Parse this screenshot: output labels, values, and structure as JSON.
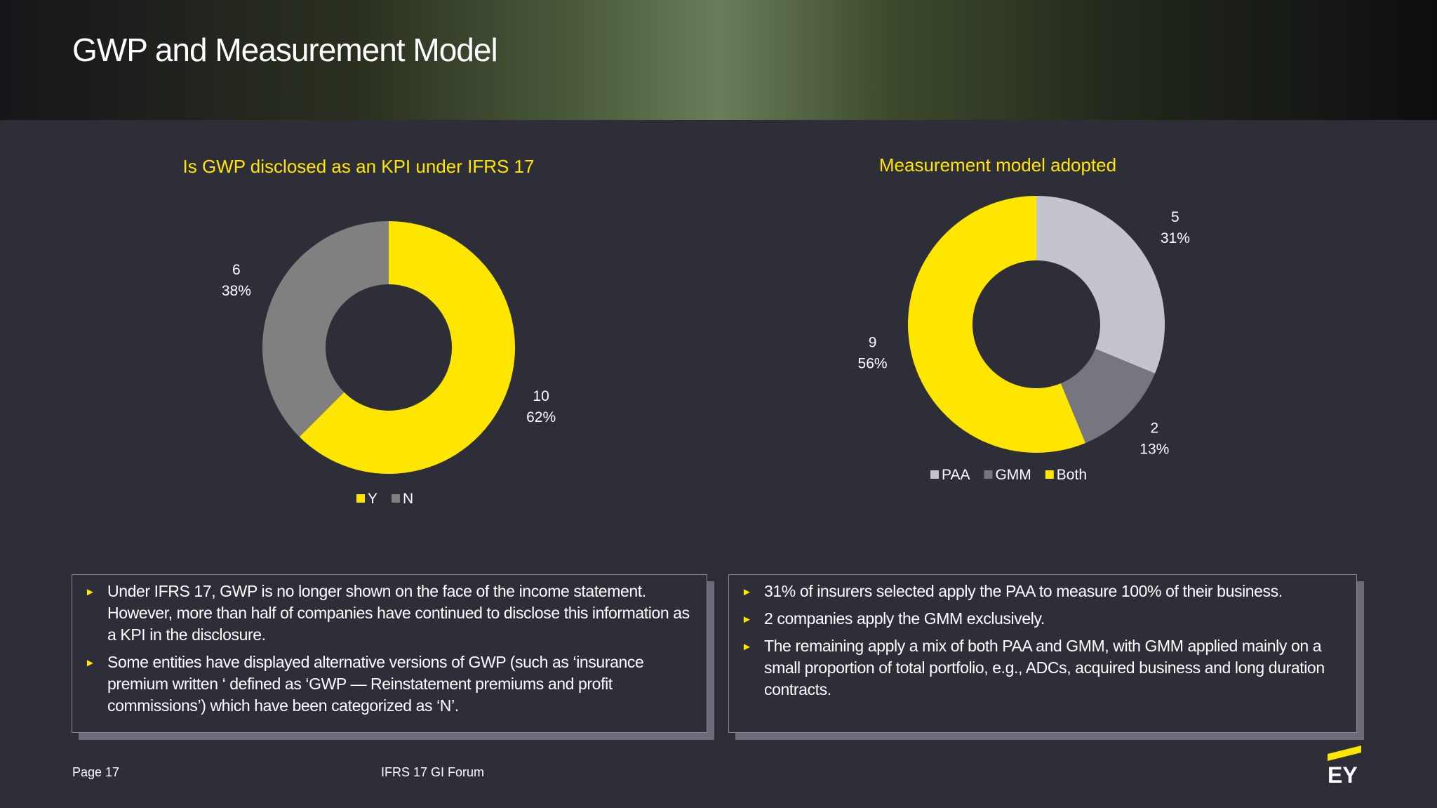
{
  "header": {
    "title": "GWP and Measurement Model"
  },
  "chart_data": [
    {
      "type": "donut",
      "title": "Is GWP disclosed as an KPI under IFRS 17",
      "categories": [
        "Y",
        "N"
      ],
      "values": [
        10,
        6
      ],
      "percent_labels": [
        "62%",
        "38%"
      ],
      "colors": [
        "#ffe600",
        "#808080"
      ]
    },
    {
      "type": "donut",
      "title": "Measurement model adopted",
      "categories": [
        "PAA",
        "GMM",
        "Both"
      ],
      "values": [
        5,
        2,
        9
      ],
      "percent_labels": [
        "31%",
        "13%",
        "56%"
      ],
      "colors": [
        "#c4c4cc",
        "#76767f",
        "#ffe600"
      ]
    }
  ],
  "notes": [
    {
      "bullets": [
        "Under IFRS 17, GWP is no longer shown on the face of the income statement. However, more than half of companies have continued to disclose this information as a KPI in the disclosure.",
        "Some entities have displayed alternative versions of GWP (such as ‘insurance premium written ‘ defined as ‘GWP — Reinstatement premiums and profit commissions’) which have been categorized as ‘N’."
      ]
    },
    {
      "bullets": [
        "31% of insurers selected apply the PAA to measure 100% of their business.",
        "2 companies apply the GMM exclusively.",
        "The remaining apply a mix of both PAA and GMM, with GMM applied mainly on a small proportion of total portfolio, e.g., ADCs, acquired business and long duration contracts."
      ]
    }
  ],
  "footer": {
    "page": "Page 17",
    "event": "IFRS 17 GI Forum",
    "logo": "EY"
  }
}
